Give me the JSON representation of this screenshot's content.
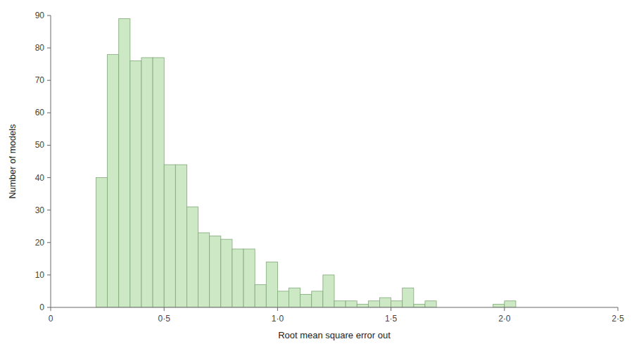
{
  "chart_data": {
    "type": "bar",
    "x": [
      0.2,
      0.25,
      0.3,
      0.35,
      0.4,
      0.45,
      0.5,
      0.55,
      0.6,
      0.65,
      0.7,
      0.75,
      0.8,
      0.85,
      0.9,
      0.95,
      1.0,
      1.05,
      1.1,
      1.15,
      1.2,
      1.25,
      1.3,
      1.35,
      1.4,
      1.45,
      1.5,
      1.55,
      1.6,
      1.65,
      1.7,
      1.95,
      2.0,
      2.05
    ],
    "values": [
      40,
      78,
      89,
      76,
      77,
      77,
      44,
      44,
      31,
      23,
      22,
      21,
      18,
      18,
      7,
      14,
      5,
      6,
      4,
      5,
      10,
      2,
      2,
      1,
      2,
      3,
      2,
      6,
      1,
      2,
      0,
      1,
      2,
      0
    ],
    "width": 0.05,
    "color": "#cde8c5",
    "x_label": "Root mean square error out",
    "y_label": "Number of models",
    "xlim": [
      0,
      2.5
    ],
    "ylim": [
      0,
      90
    ],
    "xticks": [
      0,
      {
        "value": 0.5,
        "label": "0·5"
      },
      {
        "value": 1.0,
        "label": "1·0"
      },
      {
        "value": 1.5,
        "label": "1·5"
      },
      {
        "value": 2.0,
        "label": "2·0"
      },
      {
        "value": 2.5,
        "label": "2·5"
      }
    ],
    "yticks": [
      0,
      10,
      20,
      30,
      40,
      50,
      60,
      70,
      80,
      90
    ],
    "grid": false
  }
}
